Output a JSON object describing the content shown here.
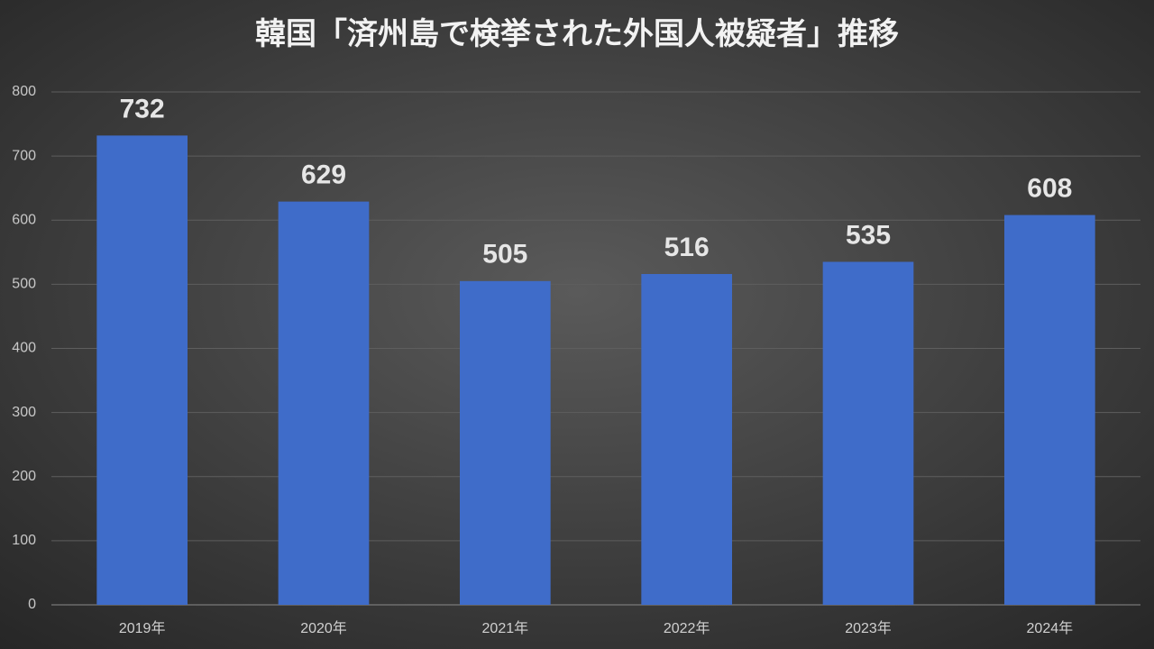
{
  "chart_data": {
    "type": "bar",
    "title": "韓国「済州島で検挙された外国人被疑者」推移",
    "categories": [
      "2019年",
      "2020年",
      "2021年",
      "2022年",
      "2023年",
      "2024年"
    ],
    "values": [
      732,
      629,
      505,
      516,
      535,
      608
    ],
    "color": "#3f6cc9",
    "ylim": [
      0,
      800
    ],
    "yticks": [
      0,
      100,
      200,
      300,
      400,
      500,
      600,
      700,
      800
    ],
    "grid": true
  }
}
